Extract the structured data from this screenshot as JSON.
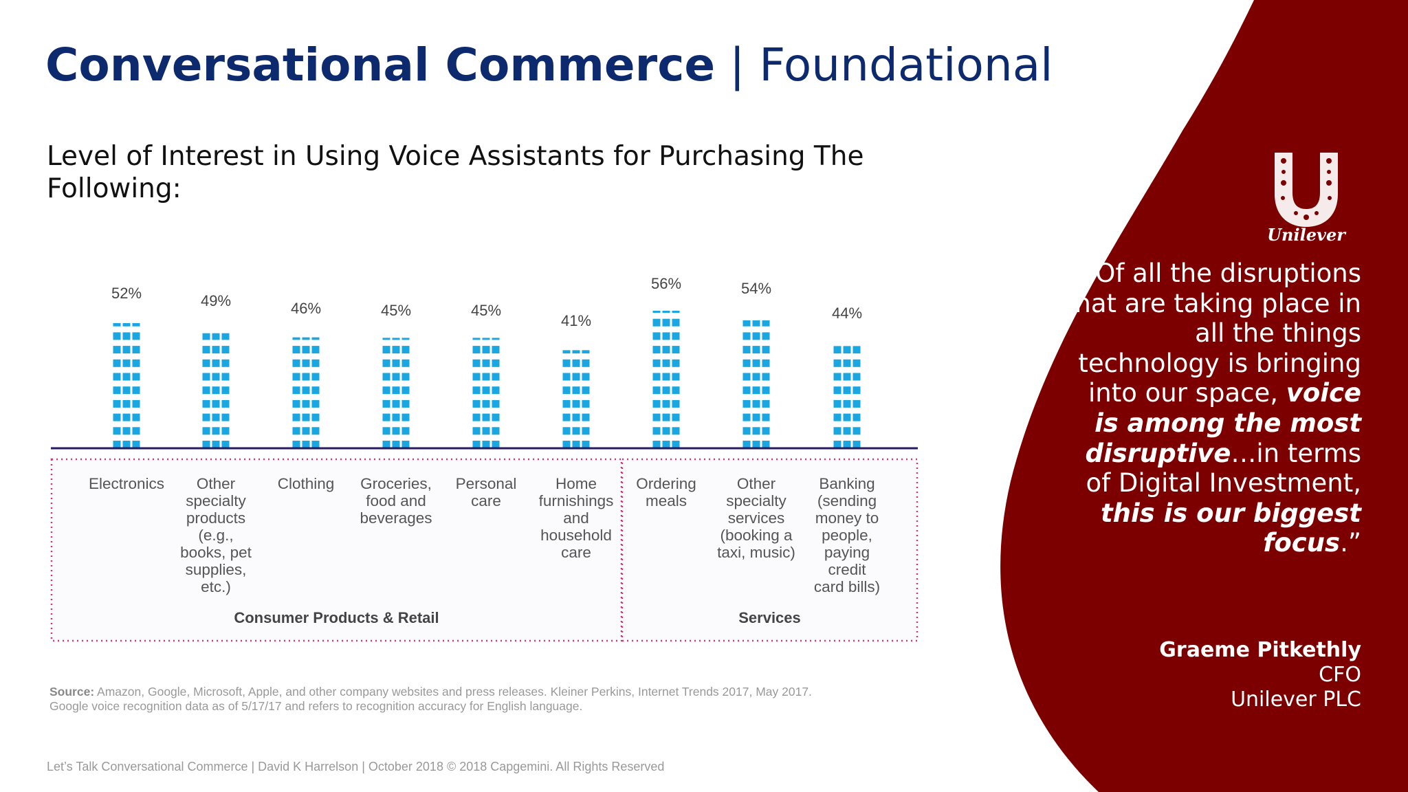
{
  "header": {
    "title_bold": "Conversational Commerce",
    "title_sep": " | ",
    "title_light": "Foundational"
  },
  "colors": {
    "title": "#0e2a6e",
    "bar": "#1aa6e0",
    "panel": "#7d0000",
    "baseline": "#2a1a5e",
    "dotted": "#d6347a"
  },
  "chart_data": {
    "type": "bar",
    "title": "Level of Interest in Using Voice Assistants for Purchasing The Following:",
    "categories": [
      "Electronics",
      "Other specialty products (e.g., books, pet supplies, etc.)",
      "Clothing",
      "Groceries, food and beverages",
      "Personal care",
      "Home furnishings and household care",
      "Ordering meals",
      "Other specialty services (booking a taxi, music)",
      "Banking (sending money to people, paying credit card bills)"
    ],
    "category_lines": [
      [
        "Electronics"
      ],
      [
        "Other",
        "specialty",
        "products (e.g.,",
        "books, pet",
        "supplies, etc.)"
      ],
      [
        "Clothing"
      ],
      [
        "Groceries,",
        "food and",
        "beverages"
      ],
      [
        "Personal",
        "care"
      ],
      [
        "Home",
        "furnishings",
        "and",
        "household",
        "care"
      ],
      [
        "Ordering",
        "meals"
      ],
      [
        "Other",
        "specialty",
        "services",
        "(booking a",
        "taxi, music)"
      ],
      [
        "Banking",
        "(sending",
        "money to",
        "people,",
        "paying",
        "credit",
        "card bills)"
      ]
    ],
    "values": [
      52,
      49,
      46,
      45,
      45,
      41,
      56,
      54,
      44
    ],
    "value_labels": [
      "52%",
      "49%",
      "46%",
      "45%",
      "45%",
      "41%",
      "56%",
      "54%",
      "44%"
    ],
    "groups": [
      {
        "label": "Consumer Products & Retail",
        "categories": [
          0,
          1,
          2,
          3,
          4,
          5
        ]
      },
      {
        "label": "Services",
        "categories": [
          6,
          7,
          8
        ]
      }
    ],
    "ylim": [
      0,
      60
    ],
    "grid": false
  },
  "source": {
    "label": "Source:",
    "text": " Amazon, Google, Microsoft, Apple, and other company websites and press releases. Kleiner Perkins, Internet Trends 2017, May 2017.",
    "line2": "Google voice recognition data as of 5/17/17 and refers to recognition accuracy for English language."
  },
  "footer": "Let’s Talk Conversational Commerce | David K Harrelson | October 2018  © 2018 Capgemini. All Rights Reserved",
  "sidebar": {
    "logo_text": "Unilever",
    "quote": [
      {
        "t": "“Of all the disruptions that are taking place in all the things technology is bringing into our space, ",
        "em": false
      },
      {
        "t": "voice is among the most disruptive",
        "em": true
      },
      {
        "t": "…in terms of Digital Investment, ",
        "em": false
      },
      {
        "t": "this is our biggest focus",
        "em": true
      },
      {
        "t": ".”",
        "em": false
      }
    ],
    "author_name": "Graeme Pitkethly",
    "author_role": "CFO",
    "author_company": "Unilever PLC"
  }
}
